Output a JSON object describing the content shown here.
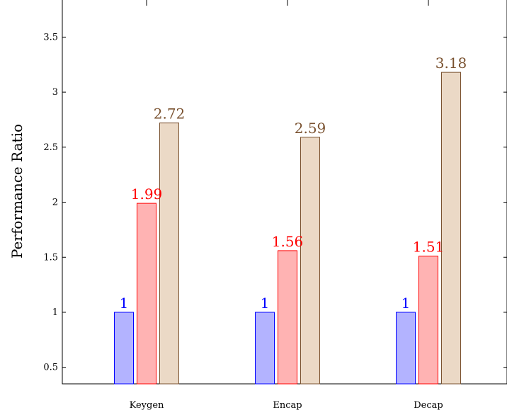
{
  "chart_data": {
    "type": "bar",
    "title": "",
    "xlabel": "",
    "ylabel": "Performance Ratio",
    "categories": [
      "Keygen",
      "Encap",
      "Decap"
    ],
    "series": [
      {
        "values": [
          1,
          1,
          1
        ],
        "fill": "#b3b3ff",
        "stroke": "#0000ff",
        "label_color": "#0000ff"
      },
      {
        "values": [
          1.99,
          1.56,
          1.51
        ],
        "fill": "#ffb3b3",
        "stroke": "#ff0000",
        "label_color": "#ff0000"
      },
      {
        "values": [
          2.72,
          2.59,
          3.18
        ],
        "fill": "#ebd9c6",
        "stroke": "#7a5230",
        "label_color": "#7a5230"
      }
    ],
    "ylim": [
      0.35,
      3.85
    ],
    "yticks": [
      0.5,
      1,
      1.5,
      2,
      2.5,
      3,
      3.5
    ],
    "ytick_labels": [
      "0.5",
      "1",
      "1.5",
      "2",
      "2.5",
      "3",
      "3.5"
    ],
    "grid": false,
    "legend": "none"
  }
}
